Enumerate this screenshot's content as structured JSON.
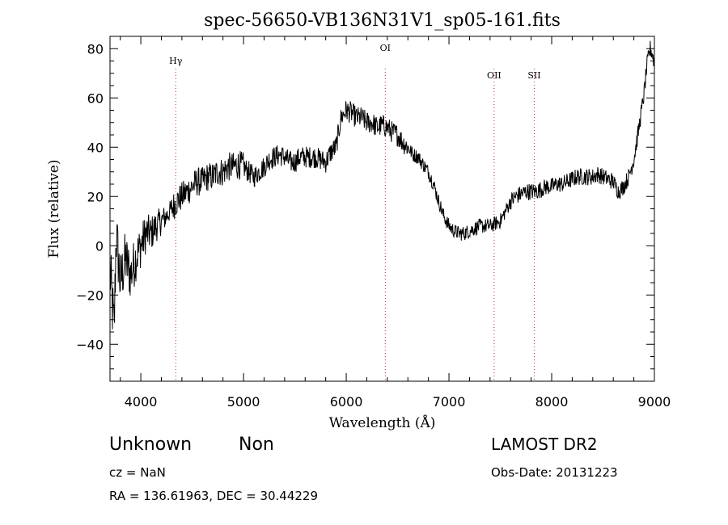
{
  "chart_data": {
    "type": "line",
    "title": "spec-56650-VB136N31V1_sp05-161.fits",
    "xlabel": "Wavelength (Å)",
    "ylabel": "Flux (relative)",
    "xlim": [
      3700,
      9000
    ],
    "ylim": [
      -55,
      85
    ],
    "xticks": [
      4000,
      5000,
      6000,
      7000,
      8000,
      9000
    ],
    "yticks": [
      -40,
      -20,
      0,
      20,
      40,
      60,
      80
    ],
    "x_minor_step": 200,
    "y_minor_step": 5,
    "grid": false,
    "line_color": "#000000",
    "series": [
      {
        "x": [
          3700,
          3740,
          3760,
          3800,
          3850,
          3900,
          3950,
          4000,
          4050,
          4100,
          4150,
          4200,
          4250,
          4300,
          4350,
          4400,
          4450,
          4500,
          4550,
          4600,
          4650,
          4700,
          4750,
          4800,
          4850,
          4900,
          4950,
          5000,
          5050,
          5100,
          5150,
          5200,
          5250,
          5300,
          5350,
          5400,
          5450,
          5500,
          5550,
          5600,
          5650,
          5700,
          5750,
          5800,
          5850,
          5900,
          5950,
          6000,
          6050,
          6100,
          6150,
          6200,
          6250,
          6300,
          6350,
          6400,
          6450,
          6500,
          6550,
          6600,
          6650,
          6700,
          6750,
          6800,
          6850,
          6900,
          6950,
          7000,
          7050,
          7100,
          7150,
          7200,
          7250,
          7300,
          7350,
          7400,
          7450,
          7500,
          7550,
          7600,
          7650,
          7700,
          7750,
          7800,
          7850,
          7900,
          7950,
          8000,
          8050,
          8100,
          8150,
          8200,
          8250,
          8300,
          8350,
          8400,
          8450,
          8500,
          8550,
          8600,
          8650,
          8700,
          8750,
          8800,
          8850,
          8900,
          8930,
          8960,
          8980,
          9000
        ],
        "y": [
          -10,
          -35,
          5,
          -15,
          -5,
          -12,
          -5,
          0,
          5,
          5,
          8,
          10,
          12,
          15,
          18,
          20,
          22,
          24,
          26,
          26,
          28,
          28,
          30,
          30,
          32,
          32,
          33,
          32,
          30,
          28,
          30,
          32,
          35,
          36,
          37,
          36,
          34,
          34,
          36,
          36,
          36,
          36,
          35,
          34,
          38,
          40,
          52,
          55,
          54,
          52,
          52,
          50,
          50,
          48,
          49,
          48,
          46,
          45,
          42,
          40,
          37,
          36,
          33,
          30,
          25,
          18,
          12,
          8,
          6,
          5,
          5,
          6,
          7,
          8,
          8,
          8,
          9,
          10,
          14,
          18,
          20,
          21,
          22,
          22,
          22,
          23,
          24,
          24,
          25,
          25,
          26,
          27,
          28,
          28,
          28,
          28,
          29,
          28,
          27,
          26,
          22,
          24,
          28,
          35,
          48,
          62,
          74,
          80,
          78,
          74
        ]
      }
    ],
    "line_markers": [
      {
        "label": "Hγ",
        "x": 4340
      },
      {
        "label": "OI",
        "x": 6380
      },
      {
        "label": "OII",
        "x": 7440
      },
      {
        "label": "SII",
        "x": 7830
      }
    ]
  },
  "info": {
    "class": "Unknown",
    "subclass": "Non",
    "survey": "LAMOST DR2",
    "cz": "cz = NaN",
    "obs_date": "Obs-Date: 20131223",
    "radec": "RA =  136.61963, DEC =   30.44229"
  }
}
